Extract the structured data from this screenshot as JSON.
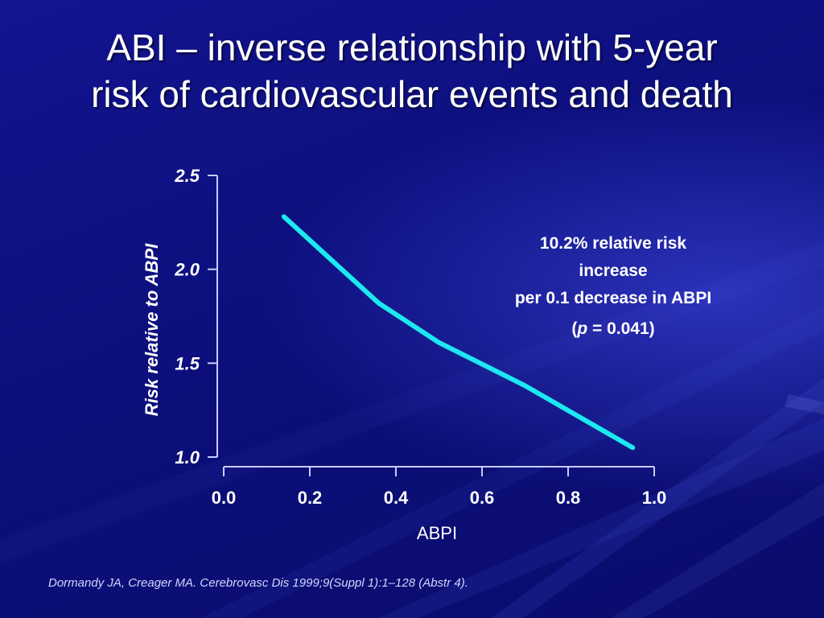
{
  "slide": {
    "title_line1": "ABI – inverse relationship with 5-year",
    "title_line2": "risk of cardiovascular events and death",
    "annotation": {
      "line1": "10.2% relative risk",
      "line2": "increase",
      "line3": "per 0.1 decrease in ABPI",
      "p_open": "(",
      "p_symbol": "p",
      "p_rest": " = 0.041)"
    },
    "source": "Dormandy JA, Creager MA. Cerebrovasc Dis 1999;9(Suppl 1):1–128 (Abstr 4)."
  },
  "colors": {
    "line": "#1ce8f0",
    "axis": "#c8ccff",
    "background": "#0c0f7c"
  },
  "chart_data": {
    "type": "line",
    "title": "",
    "xlabel": "ABPI",
    "ylabel": "Risk relative to ABPI",
    "xlim": [
      0.0,
      1.0
    ],
    "ylim": [
      1.0,
      2.5
    ],
    "x_ticks": [
      "0.0",
      "0.2",
      "0.4",
      "0.6",
      "0.8",
      "1.0"
    ],
    "y_ticks": [
      "2.5",
      "2.0",
      "1.5",
      "1.0"
    ],
    "grid": false,
    "series": [
      {
        "x": [
          0.14,
          0.36,
          0.5,
          0.7,
          0.95
        ],
        "y": [
          2.28,
          1.82,
          1.61,
          1.38,
          1.05
        ]
      }
    ]
  }
}
